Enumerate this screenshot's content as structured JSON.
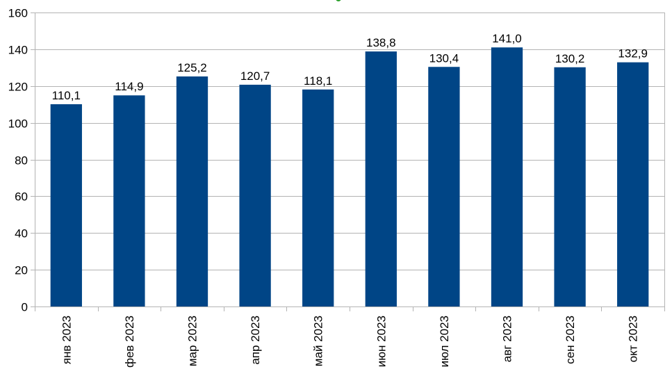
{
  "chart_data": {
    "type": "bar",
    "title": "",
    "xlabel": "",
    "ylabel": "",
    "categories": [
      "янв 2023",
      "фев 2023",
      "мар 2023",
      "апр 2023",
      "май 2023",
      "июн 2023",
      "июл 2023",
      "авг 2023",
      "сен 2023",
      "окт 2023"
    ],
    "values": [
      110.1,
      114.9,
      125.2,
      120.7,
      118.1,
      138.8,
      130.4,
      141.0,
      130.2,
      132.9
    ],
    "data_labels": [
      "110,1",
      "114,9",
      "125,2",
      "120,7",
      "118,1",
      "138,8",
      "130,4",
      "141,0",
      "130,2",
      "132,9"
    ],
    "ylim": [
      0,
      160
    ],
    "yticks": [
      0,
      20,
      40,
      60,
      80,
      100,
      120,
      140,
      160
    ],
    "grid": true,
    "legend": "none",
    "bar_color": "#004586",
    "title_mark_color": "#2ca02c"
  }
}
